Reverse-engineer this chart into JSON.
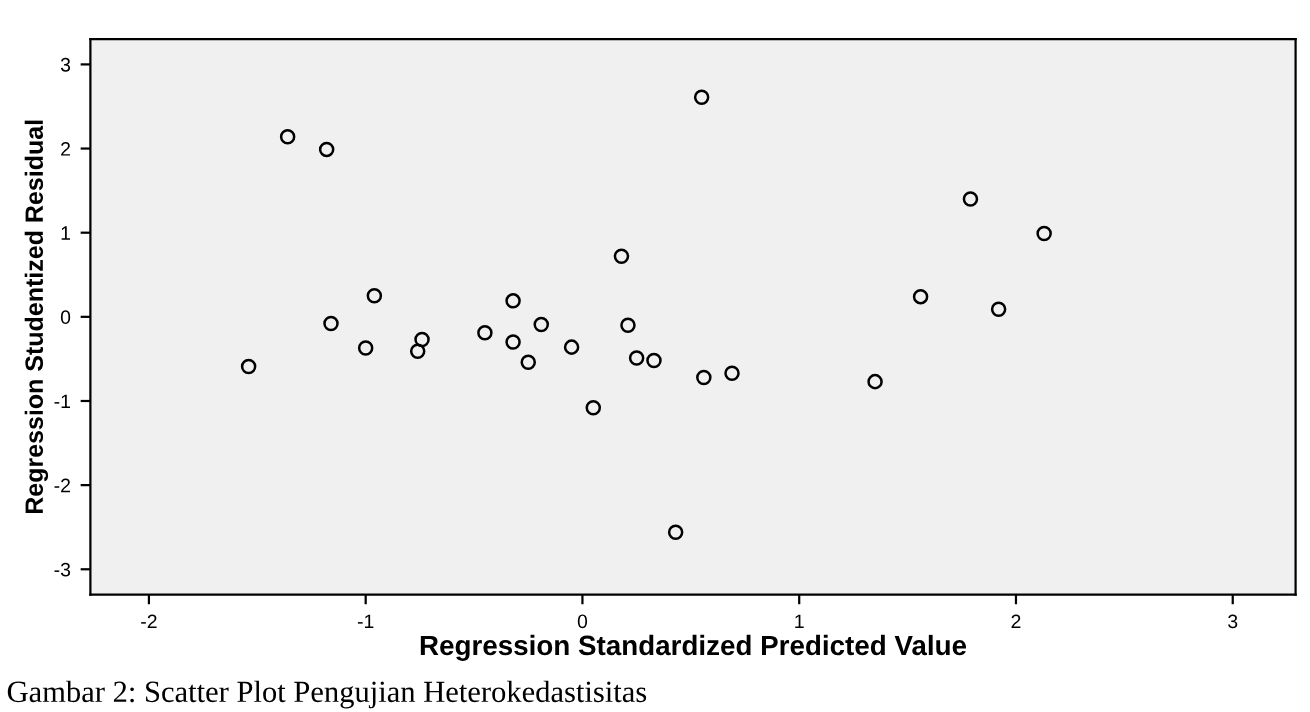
{
  "chart_data": {
    "type": "scatter",
    "xlabel": "Regression Standardized Predicted Value",
    "ylabel": "Regression Studentized Residual",
    "annotations": [
      "Gambar 2: Scatter Plot Pengujian Heterokedastisitas"
    ],
    "x": [
      -1.54,
      -1.36,
      -1.18,
      -0.96,
      -1.16,
      -1.0,
      -0.74,
      -0.76,
      -0.45,
      -0.32,
      -0.32,
      -0.19,
      -0.25,
      -0.05,
      0.05,
      0.18,
      0.21,
      0.25,
      0.33,
      0.55,
      0.56,
      0.43,
      0.69,
      1.35,
      1.56,
      1.79,
      1.92,
      2.13
    ],
    "series": [
      {
        "color": "#000000",
        "values": [
          -0.59,
          2.14,
          1.99,
          0.25,
          -0.08,
          -0.37,
          -0.27,
          -0.41,
          -0.19,
          0.19,
          -0.3,
          -0.09,
          -0.54,
          -0.36,
          -1.08,
          0.72,
          -0.1,
          -0.49,
          -0.52,
          2.61,
          -0.72,
          -2.56,
          -0.67,
          -0.77,
          0.24,
          1.4,
          0.09,
          0.99
        ]
      }
    ],
    "xlim": [
      -2.27,
      3.29
    ],
    "ylim": [
      -3.3,
      3.3
    ],
    "xticks": [
      -2,
      -1,
      0,
      1,
      2,
      3
    ],
    "yticks": [
      -3,
      -2,
      -1,
      0,
      1,
      2,
      3
    ],
    "grid": false,
    "legend": false,
    "marker": "circle"
  }
}
